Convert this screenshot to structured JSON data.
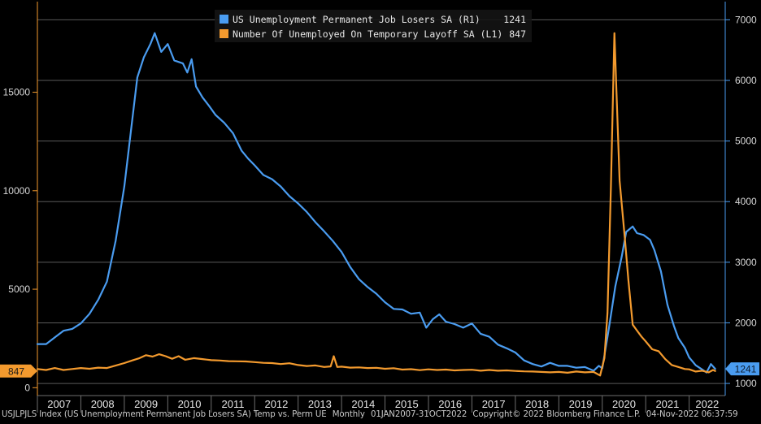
{
  "chart_data": {
    "type": "line",
    "title": "USJLPJLS Index (US Unemployment Permanent Job Losers SA) Temp vs. Perm UE",
    "frequency": "Monthly",
    "date_range": "01JAN2007-31OCT2022",
    "copyright": "Copyright© 2022 Bloomberg Finance L.P.",
    "timestamp": "04-Nov-2022 06:37:59",
    "x_labels": [
      "2007",
      "2008",
      "2009",
      "2010",
      "2011",
      "2012",
      "2013",
      "2014",
      "2015",
      "2016",
      "2017",
      "2018",
      "2019",
      "2020",
      "2021",
      "2022"
    ],
    "xlim": [
      2007.0,
      2022.83
    ],
    "left_axis": {
      "ticks": [
        0,
        5000,
        10000,
        15000
      ],
      "ylim": [
        -400,
        19600
      ]
    },
    "right_axis": {
      "ticks": [
        1000,
        2000,
        3000,
        4000,
        5000,
        6000,
        7000
      ],
      "ylim": [
        800,
        7300
      ]
    },
    "series": [
      {
        "name": "US Unemployment Permanent Job Losers SA",
        "axis": "R1",
        "legend_label": "US Unemployment Permanent Job Losers SA (R1)",
        "last_value": "1241",
        "color": "#4a9cf0",
        "points": [
          [
            2007.0,
            1650
          ],
          [
            2007.2,
            1650
          ],
          [
            2007.4,
            1760
          ],
          [
            2007.6,
            1870
          ],
          [
            2007.8,
            1900
          ],
          [
            2008.0,
            1990
          ],
          [
            2008.2,
            2150
          ],
          [
            2008.4,
            2380
          ],
          [
            2008.6,
            2680
          ],
          [
            2008.8,
            3350
          ],
          [
            2009.0,
            4250
          ],
          [
            2009.15,
            5150
          ],
          [
            2009.3,
            6050
          ],
          [
            2009.45,
            6380
          ],
          [
            2009.6,
            6600
          ],
          [
            2009.7,
            6780
          ],
          [
            2009.85,
            6470
          ],
          [
            2010.0,
            6600
          ],
          [
            2010.15,
            6330
          ],
          [
            2010.35,
            6280
          ],
          [
            2010.45,
            6130
          ],
          [
            2010.55,
            6350
          ],
          [
            2010.65,
            5900
          ],
          [
            2010.8,
            5720
          ],
          [
            2010.95,
            5580
          ],
          [
            2011.1,
            5430
          ],
          [
            2011.3,
            5300
          ],
          [
            2011.5,
            5130
          ],
          [
            2011.7,
            4840
          ],
          [
            2011.85,
            4710
          ],
          [
            2012.0,
            4600
          ],
          [
            2012.2,
            4440
          ],
          [
            2012.4,
            4370
          ],
          [
            2012.6,
            4250
          ],
          [
            2012.8,
            4090
          ],
          [
            2013.0,
            3970
          ],
          [
            2013.2,
            3830
          ],
          [
            2013.4,
            3660
          ],
          [
            2013.6,
            3510
          ],
          [
            2013.8,
            3350
          ],
          [
            2014.0,
            3170
          ],
          [
            2014.2,
            2920
          ],
          [
            2014.4,
            2720
          ],
          [
            2014.6,
            2590
          ],
          [
            2014.8,
            2480
          ],
          [
            2015.0,
            2340
          ],
          [
            2015.2,
            2230
          ],
          [
            2015.4,
            2220
          ],
          [
            2015.6,
            2150
          ],
          [
            2015.8,
            2170
          ],
          [
            2015.95,
            1920
          ],
          [
            2016.1,
            2060
          ],
          [
            2016.25,
            2140
          ],
          [
            2016.4,
            2020
          ],
          [
            2016.6,
            1980
          ],
          [
            2016.8,
            1920
          ],
          [
            2017.0,
            1990
          ],
          [
            2017.2,
            1820
          ],
          [
            2017.4,
            1770
          ],
          [
            2017.6,
            1640
          ],
          [
            2017.8,
            1580
          ],
          [
            2018.0,
            1510
          ],
          [
            2018.2,
            1380
          ],
          [
            2018.4,
            1320
          ],
          [
            2018.6,
            1280
          ],
          [
            2018.8,
            1340
          ],
          [
            2019.0,
            1290
          ],
          [
            2019.2,
            1290
          ],
          [
            2019.4,
            1260
          ],
          [
            2019.6,
            1270
          ],
          [
            2019.8,
            1210
          ],
          [
            2019.92,
            1290
          ],
          [
            2020.0,
            1250
          ],
          [
            2020.15,
            1900
          ],
          [
            2020.3,
            2600
          ],
          [
            2020.45,
            3100
          ],
          [
            2020.55,
            3500
          ],
          [
            2020.7,
            3590
          ],
          [
            2020.8,
            3480
          ],
          [
            2020.95,
            3450
          ],
          [
            2021.1,
            3370
          ],
          [
            2021.2,
            3200
          ],
          [
            2021.35,
            2850
          ],
          [
            2021.5,
            2300
          ],
          [
            2021.65,
            1950
          ],
          [
            2021.75,
            1750
          ],
          [
            2021.9,
            1590
          ],
          [
            2022.0,
            1430
          ],
          [
            2022.15,
            1300
          ],
          [
            2022.3,
            1230
          ],
          [
            2022.4,
            1180
          ],
          [
            2022.5,
            1320
          ],
          [
            2022.6,
            1241
          ]
        ]
      },
      {
        "name": "Number Of Unemployed On Temporary Layoff SA",
        "axis": "L1",
        "legend_label": "Number Of Unemployed On Temporary Layoff SA (L1)",
        "last_value": "847",
        "color": "#f39a2e",
        "points": [
          [
            2007.0,
            950
          ],
          [
            2007.2,
            900
          ],
          [
            2007.4,
            1000
          ],
          [
            2007.6,
            900
          ],
          [
            2007.8,
            950
          ],
          [
            2008.0,
            1000
          ],
          [
            2008.2,
            960
          ],
          [
            2008.4,
            1020
          ],
          [
            2008.6,
            1000
          ],
          [
            2008.8,
            1120
          ],
          [
            2009.0,
            1250
          ],
          [
            2009.2,
            1400
          ],
          [
            2009.35,
            1500
          ],
          [
            2009.5,
            1650
          ],
          [
            2009.65,
            1580
          ],
          [
            2009.8,
            1700
          ],
          [
            2009.95,
            1600
          ],
          [
            2010.1,
            1470
          ],
          [
            2010.25,
            1600
          ],
          [
            2010.4,
            1420
          ],
          [
            2010.6,
            1500
          ],
          [
            2010.8,
            1450
          ],
          [
            2011.0,
            1400
          ],
          [
            2011.2,
            1380
          ],
          [
            2011.4,
            1350
          ],
          [
            2011.6,
            1340
          ],
          [
            2011.8,
            1330
          ],
          [
            2012.0,
            1300
          ],
          [
            2012.2,
            1260
          ],
          [
            2012.4,
            1250
          ],
          [
            2012.6,
            1200
          ],
          [
            2012.8,
            1240
          ],
          [
            2013.0,
            1150
          ],
          [
            2013.2,
            1100
          ],
          [
            2013.4,
            1130
          ],
          [
            2013.6,
            1050
          ],
          [
            2013.75,
            1080
          ],
          [
            2013.82,
            1600
          ],
          [
            2013.9,
            1050
          ],
          [
            2014.0,
            1070
          ],
          [
            2014.2,
            1020
          ],
          [
            2014.4,
            1030
          ],
          [
            2014.6,
            1000
          ],
          [
            2014.8,
            1010
          ],
          [
            2015.0,
            960
          ],
          [
            2015.2,
            990
          ],
          [
            2015.4,
            920
          ],
          [
            2015.6,
            940
          ],
          [
            2015.8,
            890
          ],
          [
            2016.0,
            930
          ],
          [
            2016.2,
            900
          ],
          [
            2016.4,
            920
          ],
          [
            2016.6,
            880
          ],
          [
            2016.8,
            900
          ],
          [
            2017.0,
            910
          ],
          [
            2017.2,
            860
          ],
          [
            2017.4,
            900
          ],
          [
            2017.6,
            860
          ],
          [
            2017.8,
            880
          ],
          [
            2018.0,
            850
          ],
          [
            2018.2,
            830
          ],
          [
            2018.4,
            820
          ],
          [
            2018.6,
            800
          ],
          [
            2018.8,
            780
          ],
          [
            2019.0,
            800
          ],
          [
            2019.2,
            760
          ],
          [
            2019.4,
            820
          ],
          [
            2019.6,
            780
          ],
          [
            2019.8,
            800
          ],
          [
            2019.95,
            620
          ],
          [
            2020.05,
            1500
          ],
          [
            2020.12,
            3800
          ],
          [
            2020.2,
            10200
          ],
          [
            2020.28,
            18000
          ],
          [
            2020.4,
            10500
          ],
          [
            2020.52,
            7600
          ],
          [
            2020.6,
            5500
          ],
          [
            2020.7,
            3200
          ],
          [
            2020.8,
            2900
          ],
          [
            2020.9,
            2600
          ],
          [
            2021.0,
            2350
          ],
          [
            2021.15,
            1950
          ],
          [
            2021.3,
            1850
          ],
          [
            2021.45,
            1450
          ],
          [
            2021.6,
            1150
          ],
          [
            2021.75,
            1050
          ],
          [
            2021.9,
            950
          ],
          [
            2022.0,
            930
          ],
          [
            2022.15,
            820
          ],
          [
            2022.3,
            860
          ],
          [
            2022.45,
            780
          ],
          [
            2022.55,
            900
          ],
          [
            2022.6,
            847
          ]
        ]
      }
    ]
  }
}
